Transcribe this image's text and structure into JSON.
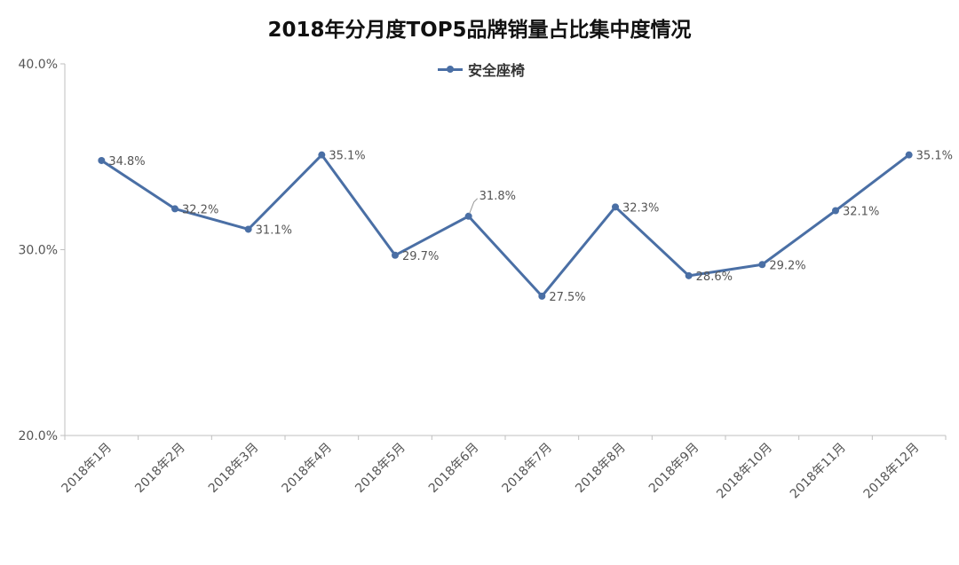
{
  "chart_data": {
    "type": "line",
    "title": "2018年分月度TOP5品牌销量占比集中度情况",
    "categories": [
      "2018年1月",
      "2018年2月",
      "2018年3月",
      "2018年4月",
      "2018年5月",
      "2018年6月",
      "2018年7月",
      "2018年8月",
      "2018年9月",
      "2018年10月",
      "2018年11月",
      "2018年12月"
    ],
    "series": [
      {
        "name": "安全座椅",
        "values": [
          34.8,
          32.2,
          31.1,
          35.1,
          29.7,
          31.8,
          27.5,
          32.3,
          28.6,
          29.2,
          32.1,
          35.1
        ],
        "labels": [
          "34.8%",
          "32.2%",
          "31.1%",
          "35.1%",
          "29.7%",
          "31.8%",
          "27.5%",
          "32.3%",
          "28.6%",
          "29.2%",
          "32.1%",
          "35.1%"
        ],
        "color": "#4a6fa5"
      }
    ],
    "yticks": [
      "20.0%",
      "30.0%",
      "40.0%"
    ],
    "ylim": [
      20,
      40
    ],
    "grid": false,
    "legend_position": "top-center"
  }
}
